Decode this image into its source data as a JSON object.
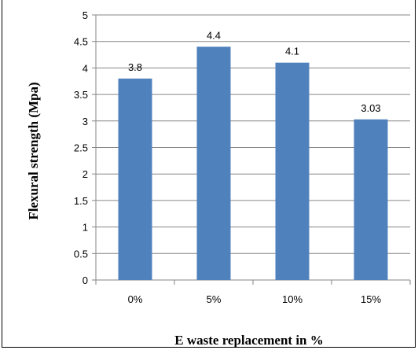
{
  "chart_data": {
    "type": "bar",
    "title": "",
    "xlabel": "E waste replacement in %",
    "ylabel": "Flexural strength (Mpa)",
    "categories": [
      "0%",
      "5%",
      "10%",
      "15%"
    ],
    "values": [
      3.8,
      4.4,
      4.1,
      3.03
    ],
    "data_labels": [
      "3.8",
      "4.4",
      "4.1",
      "3.03"
    ],
    "y_ticks": [
      "0",
      "0.5",
      "1",
      "1.5",
      "2",
      "2.5",
      "3",
      "3.5",
      "4",
      "4.5",
      "5"
    ],
    "ylim": [
      0,
      5
    ],
    "grid": true,
    "legend": "none",
    "bar_color": "#4f81bd",
    "grid_color": "#868686"
  }
}
